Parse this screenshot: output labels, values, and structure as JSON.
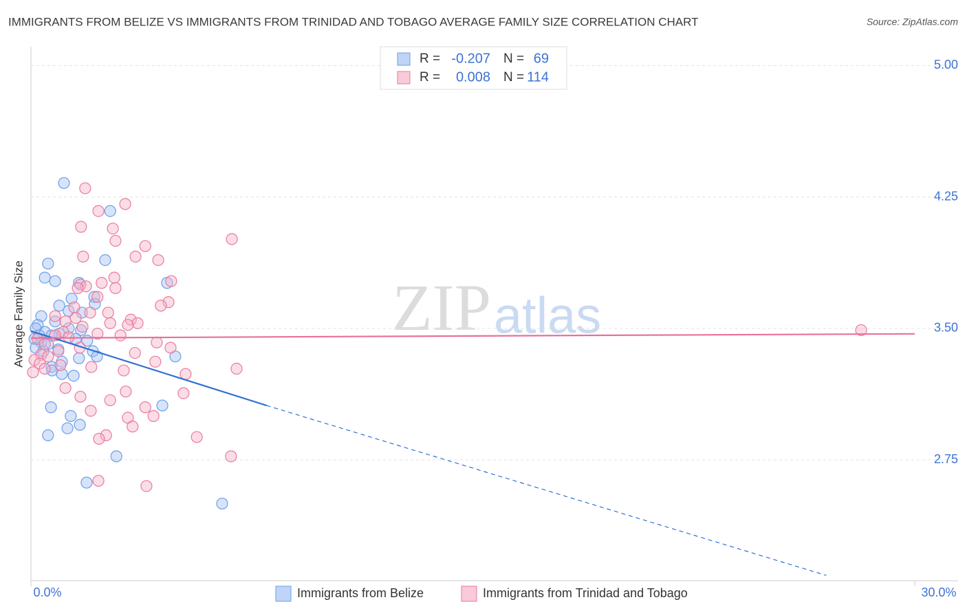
{
  "chart_data": {
    "type": "scatter",
    "title": "IMMIGRANTS FROM BELIZE VS IMMIGRANTS FROM TRINIDAD AND TOBAGO AVERAGE FAMILY SIZE CORRELATION CHART",
    "source": "Source: ZipAtlas.com",
    "y_label": "Average Family Size",
    "watermark": [
      "ZIP",
      "atlas"
    ],
    "xlim": [
      0,
      30
    ],
    "ylim": [
      2.06,
      5.1
    ],
    "xticks": [
      {
        "value": 0,
        "label": "0.0%"
      },
      {
        "value": 30,
        "label": "30.0%"
      }
    ],
    "yticks": [
      {
        "value": 2.75,
        "label": "2.75"
      },
      {
        "value": 3.5,
        "label": "3.50"
      },
      {
        "value": 4.25,
        "label": "4.25"
      },
      {
        "value": 5.0,
        "label": "5.00"
      }
    ],
    "grid": true,
    "r_label": "R =",
    "n_label": "N =",
    "series": [
      {
        "name": "Immigrants from Belize",
        "color": "#a4c2f4",
        "stroke": "#6c9ee6",
        "line_color": "#2f6fd6",
        "r": -0.207,
        "n": 69,
        "x": [
          1.12,
          2.69,
          0.58,
          2.52,
          0.47,
          0.82,
          4.62,
          1.63,
          2.15,
          1.38,
          2.17,
          0.96,
          1.28,
          0.35,
          1.73,
          0.82,
          0.23,
          1.28,
          1.7,
          0.16,
          0.47,
          0.96,
          0.28,
          0.7,
          0.12,
          1.52,
          1.91,
          0.35,
          0.58,
          0.16,
          0.93,
          2.1,
          2.24,
          4.9,
          1.63,
          0.42,
          1.05,
          0.7,
          0.72,
          1.05,
          1.45,
          4.46,
          0.68,
          1.35,
          1.66,
          1.24,
          0.58,
          2.9,
          1.89,
          6.49
        ],
        "y": [
          4.33,
          4.17,
          3.87,
          3.89,
          3.79,
          3.77,
          3.76,
          3.76,
          3.68,
          3.67,
          3.64,
          3.63,
          3.6,
          3.57,
          3.59,
          3.54,
          3.52,
          3.5,
          3.49,
          3.5,
          3.48,
          3.47,
          3.46,
          3.46,
          3.44,
          3.44,
          3.43,
          3.42,
          3.41,
          3.39,
          3.38,
          3.37,
          3.34,
          3.34,
          3.33,
          3.37,
          3.31,
          3.28,
          3.26,
          3.24,
          3.23,
          3.06,
          3.05,
          3.0,
          2.95,
          2.93,
          2.89,
          2.77,
          2.62,
          2.5
        ],
        "trend": {
          "x": [
            0,
            8
          ],
          "y": [
            3.485,
            3.06
          ]
        },
        "trend_extension": {
          "x": [
            8,
            27
          ],
          "y": [
            3.06,
            2.09
          ]
        }
      },
      {
        "name": "Immigrants from Trinidad and Tobago",
        "color": "#f6b3c8",
        "stroke": "#e87aa0",
        "line_color": "#e8709a",
        "r": 0.008,
        "n": 114,
        "x": [
          1.84,
          3.2,
          2.29,
          2.78,
          1.7,
          2.87,
          6.82,
          3.88,
          1.77,
          3.55,
          4.32,
          2.83,
          4.76,
          2.4,
          1.68,
          1.87,
          2.87,
          1.59,
          2.26,
          4.67,
          4.41,
          1.47,
          2.62,
          2.01,
          0.82,
          1.52,
          3.39,
          3.62,
          2.69,
          1.17,
          3.29,
          1.75,
          2.26,
          3.04,
          1.1,
          0.82,
          1.28,
          0.23,
          4.27,
          0.47,
          4.74,
          1.66,
          3.53,
          0.93,
          0.35,
          0.58,
          0.12,
          0.3,
          4.22,
          1.0,
          2.05,
          3.15,
          6.98,
          5.25,
          0.07,
          0.47,
          1.17,
          3.22,
          5.18,
          1.68,
          2.69,
          3.88,
          2.03,
          3.29,
          4.16,
          3.45,
          2.55,
          2.31,
          5.63,
          6.79,
          2.29,
          3.92,
          28.18
        ],
        "y": [
          4.3,
          4.21,
          4.17,
          4.07,
          4.08,
          4.0,
          4.01,
          3.97,
          3.91,
          3.91,
          3.89,
          3.79,
          3.77,
          3.76,
          3.75,
          3.74,
          3.73,
          3.73,
          3.68,
          3.65,
          3.63,
          3.62,
          3.59,
          3.59,
          3.57,
          3.56,
          3.55,
          3.53,
          3.53,
          3.54,
          3.52,
          3.51,
          3.47,
          3.46,
          3.48,
          3.46,
          3.45,
          3.44,
          3.42,
          3.41,
          3.39,
          3.39,
          3.36,
          3.37,
          3.35,
          3.34,
          3.32,
          3.3,
          3.31,
          3.29,
          3.28,
          3.26,
          3.27,
          3.24,
          3.25,
          3.27,
          3.16,
          3.14,
          3.13,
          3.11,
          3.09,
          3.05,
          3.03,
          2.99,
          3.0,
          2.94,
          2.89,
          2.87,
          2.88,
          2.77,
          2.63,
          2.6,
          3.49
        ],
        "trend": {
          "x": [
            0,
            30
          ],
          "y": [
            3.445,
            3.469
          ]
        }
      }
    ]
  }
}
